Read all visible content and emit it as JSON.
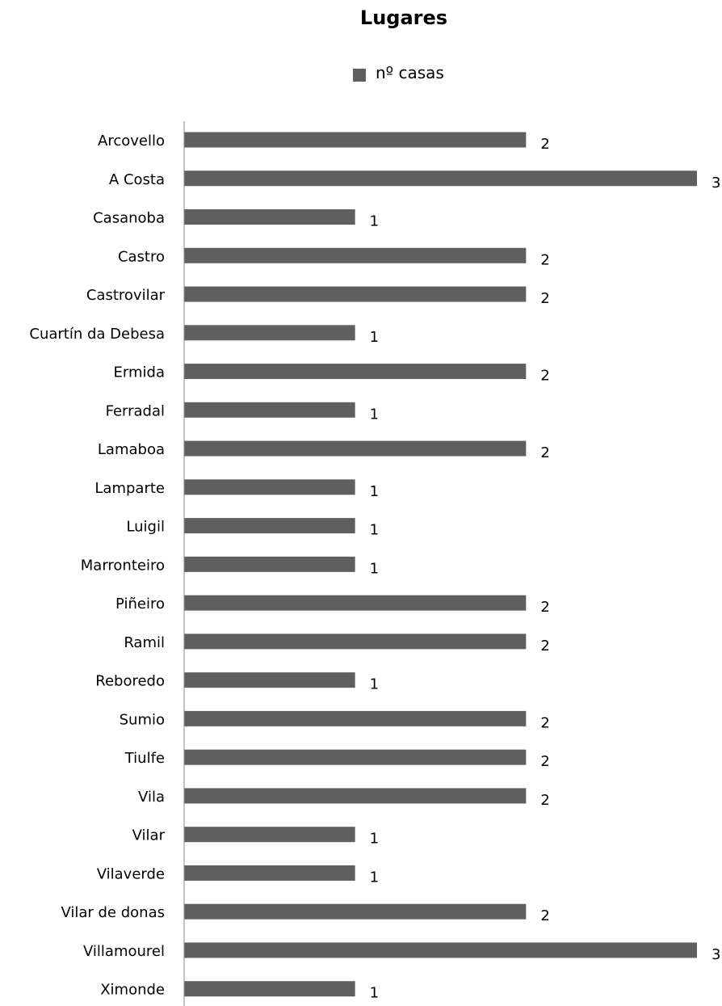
{
  "chart_data": {
    "type": "bar",
    "orientation": "horizontal",
    "title": "Lugares",
    "legend": {
      "position": "top",
      "entries": [
        "nº casas"
      ]
    },
    "categories": [
      "Arcovello",
      "A Costa",
      "Casanoba",
      "Castro",
      "Castrovilar",
      "Cuartín da Debesa",
      "Ermida",
      "Ferradal",
      "Lamaboa",
      "Lamparte",
      "Luigil",
      "Marronteiro",
      "Piñeiro",
      "Ramil",
      "Reboredo",
      "Sumio",
      "Tiulfe",
      "Vila",
      "Vilar",
      "Vilaverde",
      "Vilar de donas",
      "Villamourel",
      "Ximonde"
    ],
    "series": [
      {
        "name": "nº casas",
        "values": [
          2,
          3,
          1,
          2,
          2,
          1,
          2,
          1,
          2,
          1,
          1,
          1,
          2,
          2,
          1,
          2,
          2,
          2,
          1,
          1,
          2,
          3,
          1
        ]
      }
    ],
    "xlim": [
      0,
      3
    ],
    "grid": false,
    "data_labels": true,
    "colors": {
      "bar": "#5f5f5f",
      "axis": "#888888"
    }
  }
}
